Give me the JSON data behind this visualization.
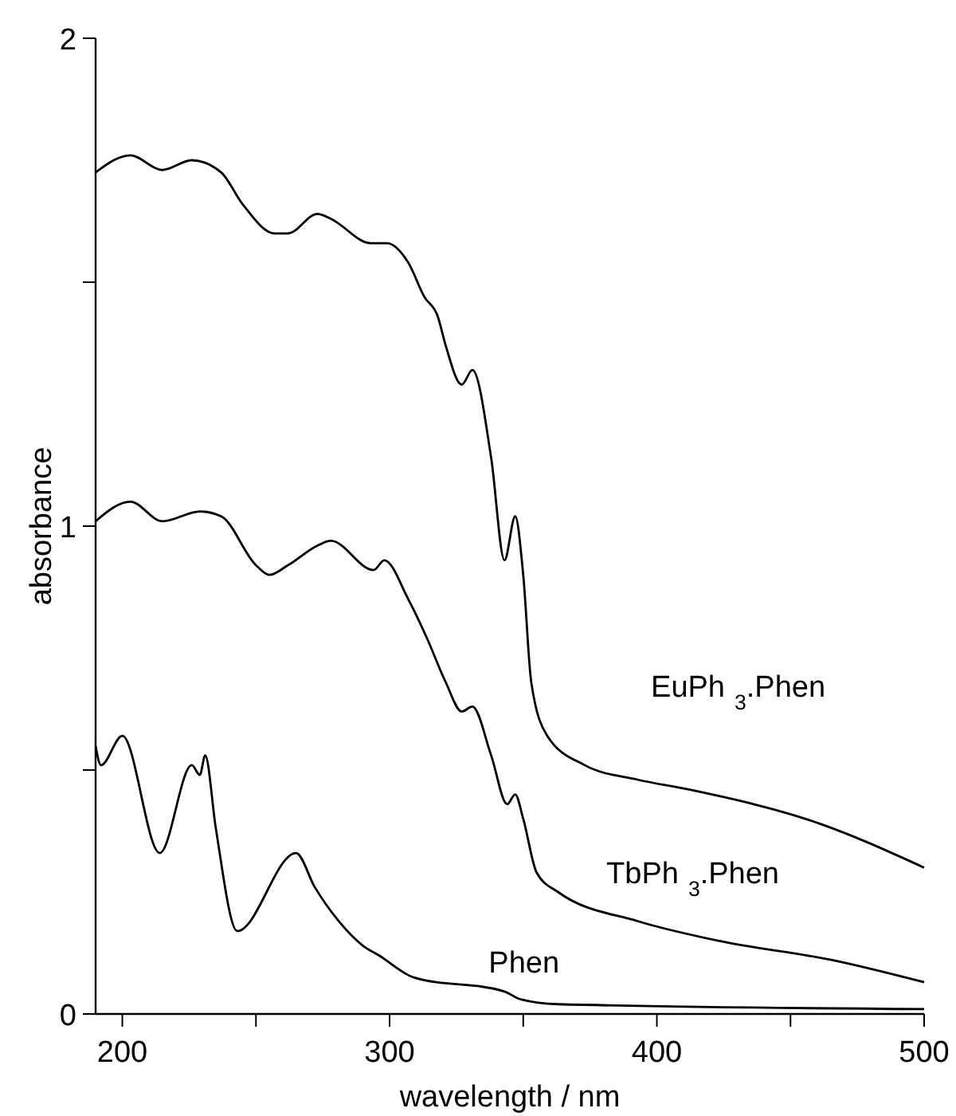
{
  "chart_data": {
    "type": "line",
    "xlabel": "wavelength / nm",
    "ylabel": "absorbance",
    "xlim": [
      190,
      500
    ],
    "ylim": [
      0,
      2
    ],
    "xticks": [
      {
        "value": 200,
        "label": "200"
      },
      {
        "value": 250,
        "label": null
      },
      {
        "value": 300,
        "label": "300"
      },
      {
        "value": 350,
        "label": null
      },
      {
        "value": 400,
        "label": "400"
      },
      {
        "value": 450,
        "label": null
      },
      {
        "value": 500,
        "label": "500"
      }
    ],
    "yticks": [
      {
        "value": 0,
        "label": "0"
      },
      {
        "value": 0.5,
        "label": null
      },
      {
        "value": 1,
        "label": "1"
      },
      {
        "value": 1.5,
        "label": null
      },
      {
        "value": 2,
        "label": "2"
      }
    ],
    "grid": false,
    "marker": "none",
    "line_style": "solid",
    "series": [
      {
        "name": "EuPh$_{3}$.Phen",
        "color": "#000000",
        "x": [
          190,
          203,
          215,
          226,
          237,
          245,
          257,
          262,
          273,
          278,
          293,
          299,
          307,
          313,
          318,
          321,
          327,
          331,
          338,
          343,
          347,
          350,
          353,
          359,
          373,
          393,
          412,
          461,
          500
        ],
        "values": [
          1.725,
          1.76,
          1.73,
          1.75,
          1.725,
          1.66,
          1.6,
          1.6,
          1.64,
          1.63,
          1.58,
          1.58,
          1.54,
          1.47,
          1.43,
          1.37,
          1.29,
          1.32,
          1.14,
          0.93,
          1.02,
          0.9,
          0.68,
          0.57,
          0.51,
          0.48,
          0.46,
          0.39,
          0.3
        ]
      },
      {
        "name": "TbPh$_{3}$.Phen",
        "color": "#000000",
        "x": [
          190,
          203,
          215,
          229,
          237,
          250,
          255,
          262,
          273,
          278,
          294,
          298,
          307,
          314,
          321,
          327,
          331,
          338,
          344,
          347,
          350,
          355,
          363,
          393,
          423,
          466,
          500
        ],
        "values": [
          1.01,
          1.05,
          1.01,
          1.03,
          1.02,
          0.92,
          0.9,
          0.92,
          0.96,
          0.97,
          0.91,
          0.93,
          0.85,
          0.77,
          0.68,
          0.62,
          0.63,
          0.53,
          0.43,
          0.45,
          0.4,
          0.29,
          0.25,
          0.19,
          0.15,
          0.11,
          0.065
        ]
      },
      {
        "name": "Phen",
        "color": "#000000",
        "x": [
          190,
          192,
          200,
          214,
          226,
          229,
          231,
          235,
          243,
          265,
          272,
          281,
          290,
          296,
          309,
          343,
          349,
          363,
          500
        ],
        "values": [
          0.55,
          0.51,
          0.57,
          0.33,
          0.51,
          0.49,
          0.53,
          0.38,
          0.17,
          0.33,
          0.26,
          0.19,
          0.14,
          0.12,
          0.075,
          0.046,
          0.03,
          0.02,
          0.01
        ]
      }
    ]
  }
}
